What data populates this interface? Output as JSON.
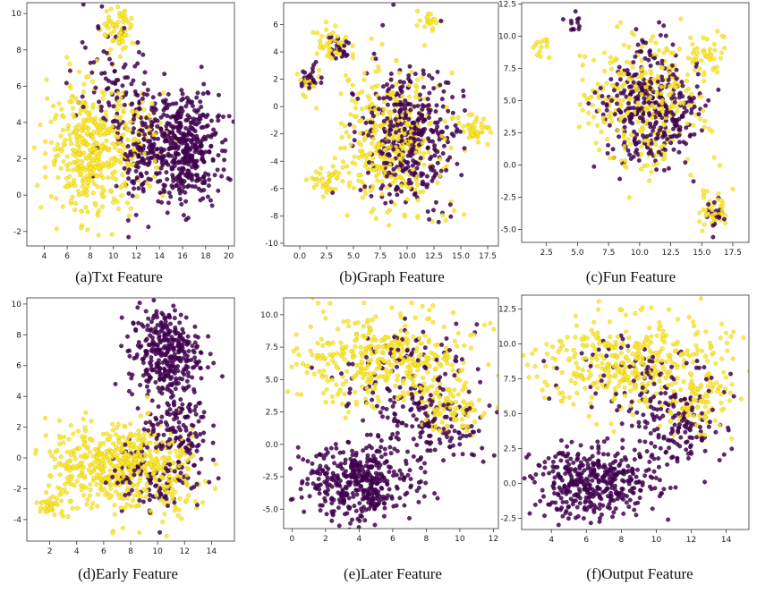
{
  "figure": {
    "colors": {
      "class_a": "#440154",
      "class_b": "#fde725",
      "frame": "#333333"
    }
  },
  "chart_data": [
    {
      "type": "scatter",
      "title": "(a)Txt Feature",
      "xlim": [
        2.5,
        20.5
      ],
      "ylim": [
        -2.8,
        10.6
      ],
      "xticks": [
        4,
        6,
        8,
        10,
        12,
        14,
        16,
        18,
        20
      ],
      "yticks": [
        -2,
        0,
        2,
        4,
        6,
        8,
        10
      ],
      "series": [
        {
          "color": "purple",
          "clusters": [
            {
              "cx": 16.2,
              "cy": 2.6,
              "rx": 2.9,
              "ry": 3.0,
              "n": 420
            },
            {
              "cx": 12.5,
              "cy": 2.5,
              "rx": 2.0,
              "ry": 3.2,
              "n": 140
            },
            {
              "cx": 10.0,
              "cy": 5.5,
              "rx": 3.5,
              "ry": 3.5,
              "n": 90
            }
          ]
        },
        {
          "color": "yellow",
          "clusters": [
            {
              "cx": 8.0,
              "cy": 2.5,
              "rx": 3.6,
              "ry": 3.6,
              "n": 380
            },
            {
              "cx": 10.5,
              "cy": 9.0,
              "rx": 1.4,
              "ry": 1.3,
              "n": 70
            },
            {
              "cx": 12.0,
              "cy": 3.0,
              "rx": 2.5,
              "ry": 2.5,
              "n": 80
            }
          ]
        }
      ]
    },
    {
      "type": "scatter",
      "title": "(b)Graph Feature",
      "xlim": [
        -1.5,
        18.5
      ],
      "ylim": [
        -10.2,
        7.6
      ],
      "xticks": [
        0.0,
        2.5,
        5.0,
        7.5,
        10.0,
        12.5,
        15.0,
        17.5
      ],
      "yticks": [
        -10,
        -8,
        -6,
        -4,
        -2,
        0,
        2,
        4,
        6
      ],
      "series": [
        {
          "color": "purple",
          "clusters": [
            {
              "cx": 10.0,
              "cy": -2.0,
              "rx": 4.5,
              "ry": 5.0,
              "n": 380
            },
            {
              "cx": 1.0,
              "cy": 2.0,
              "rx": 0.9,
              "ry": 0.9,
              "n": 25
            },
            {
              "cx": 3.5,
              "cy": 4.5,
              "rx": 1.0,
              "ry": 0.9,
              "n": 25
            }
          ]
        },
        {
          "color": "yellow",
          "clusters": [
            {
              "cx": 8.5,
              "cy": -2.5,
              "rx": 5.0,
              "ry": 5.2,
              "n": 360
            },
            {
              "cx": 3.0,
              "cy": 4.5,
              "rx": 1.5,
              "ry": 1.2,
              "n": 45
            },
            {
              "cx": 16.5,
              "cy": -1.8,
              "rx": 1.2,
              "ry": 1.0,
              "n": 45
            },
            {
              "cx": 12.0,
              "cy": 6.0,
              "rx": 1.0,
              "ry": 0.7,
              "n": 20
            },
            {
              "cx": 0.8,
              "cy": 1.8,
              "rx": 0.8,
              "ry": 0.8,
              "n": 20
            },
            {
              "cx": 2.5,
              "cy": -5.5,
              "rx": 1.5,
              "ry": 1.0,
              "n": 35
            }
          ]
        }
      ]
    },
    {
      "type": "scatter",
      "title": "(c)Fun Feature",
      "xlim": [
        0.5,
        18.8
      ],
      "ylim": [
        -6.0,
        12.6
      ],
      "xticks": [
        2.5,
        5.0,
        7.5,
        10.0,
        12.5,
        15.0,
        17.5
      ],
      "yticks": [
        -5.0,
        -2.5,
        0.0,
        2.5,
        5.0,
        7.5,
        10.0,
        12.5
      ],
      "series": [
        {
          "color": "purple",
          "clusters": [
            {
              "cx": 11.0,
              "cy": 4.5,
              "rx": 4.0,
              "ry": 4.5,
              "n": 340
            },
            {
              "cx": 16.0,
              "cy": -4.0,
              "rx": 0.9,
              "ry": 1.2,
              "n": 20
            },
            {
              "cx": 4.8,
              "cy": 11.0,
              "rx": 0.4,
              "ry": 0.8,
              "n": 12
            }
          ]
        },
        {
          "color": "yellow",
          "clusters": [
            {
              "cx": 10.5,
              "cy": 5.0,
              "rx": 5.0,
              "ry": 5.0,
              "n": 320
            },
            {
              "cx": 16.0,
              "cy": -3.5,
              "rx": 1.2,
              "ry": 1.6,
              "n": 40
            },
            {
              "cx": 2.0,
              "cy": 9.0,
              "rx": 0.6,
              "ry": 1.0,
              "n": 14
            },
            {
              "cx": 15.5,
              "cy": 8.5,
              "rx": 1.5,
              "ry": 1.5,
              "n": 30
            }
          ]
        }
      ]
    },
    {
      "type": "scatter",
      "title": "(d)Early Feature",
      "xlim": [
        0.3,
        15.7
      ],
      "ylim": [
        -5.4,
        10.4
      ],
      "xticks": [
        2,
        4,
        6,
        8,
        10,
        12,
        14
      ],
      "yticks": [
        -4,
        -2,
        0,
        2,
        4,
        6,
        8,
        10
      ],
      "series": [
        {
          "color": "purple",
          "clusters": [
            {
              "cx": 10.5,
              "cy": 6.8,
              "rx": 2.6,
              "ry": 3.0,
              "n": 340
            },
            {
              "cx": 11.5,
              "cy": 2.0,
              "rx": 2.2,
              "ry": 2.5,
              "n": 120
            },
            {
              "cx": 10.0,
              "cy": -1.0,
              "rx": 3.5,
              "ry": 2.5,
              "n": 120
            }
          ]
        },
        {
          "color": "yellow",
          "clusters": [
            {
              "cx": 5.5,
              "cy": -0.5,
              "rx": 3.8,
              "ry": 2.8,
              "n": 300
            },
            {
              "cx": 10.0,
              "cy": -1.0,
              "rx": 3.8,
              "ry": 3.0,
              "n": 220
            },
            {
              "cx": 2.0,
              "cy": -3.0,
              "rx": 1.0,
              "ry": 0.6,
              "n": 30
            },
            {
              "cx": 8.0,
              "cy": 0.0,
              "rx": 1.5,
              "ry": 1.5,
              "n": 60
            }
          ]
        }
      ]
    },
    {
      "type": "scatter",
      "title": "(e)Later Feature",
      "xlim": [
        -0.5,
        12.3
      ],
      "ylim": [
        -6.5,
        11.3
      ],
      "xticks": [
        0,
        2,
        4,
        6,
        8,
        10,
        12
      ],
      "yticks": [
        -5.0,
        -2.5,
        0.0,
        2.5,
        5.0,
        7.5,
        10.0
      ],
      "series": [
        {
          "color": "purple",
          "clusters": [
            {
              "cx": 4.0,
              "cy": -3.0,
              "rx": 3.2,
              "ry": 2.8,
              "n": 400
            },
            {
              "cx": 8.0,
              "cy": 1.5,
              "rx": 3.5,
              "ry": 3.0,
              "n": 160
            },
            {
              "cx": 7.0,
              "cy": 6.0,
              "rx": 4.0,
              "ry": 3.0,
              "n": 90
            }
          ]
        },
        {
          "color": "yellow",
          "clusters": [
            {
              "cx": 5.5,
              "cy": 6.5,
              "rx": 5.2,
              "ry": 3.5,
              "n": 400
            },
            {
              "cx": 9.5,
              "cy": 2.5,
              "rx": 2.2,
              "ry": 2.5,
              "n": 90
            }
          ]
        }
      ]
    },
    {
      "type": "scatter",
      "title": "(f)Output Feature",
      "xlim": [
        2.3,
        15.3
      ],
      "ylim": [
        -3.3,
        13.5
      ],
      "xticks": [
        4,
        6,
        8,
        10,
        12,
        14
      ],
      "yticks": [
        -2.5,
        0.0,
        2.5,
        5.0,
        7.5,
        10.0,
        12.5
      ],
      "series": [
        {
          "color": "purple",
          "clusters": [
            {
              "cx": 6.5,
              "cy": 0.0,
              "rx": 3.5,
              "ry": 2.5,
              "n": 400
            },
            {
              "cx": 11.0,
              "cy": 4.0,
              "rx": 3.0,
              "ry": 3.0,
              "n": 150
            },
            {
              "cx": 9.0,
              "cy": 8.0,
              "rx": 4.0,
              "ry": 3.0,
              "n": 80
            }
          ]
        },
        {
          "color": "yellow",
          "clusters": [
            {
              "cx": 8.5,
              "cy": 8.5,
              "rx": 5.5,
              "ry": 3.5,
              "n": 400
            },
            {
              "cx": 12.5,
              "cy": 5.5,
              "rx": 2.0,
              "ry": 2.5,
              "n": 80
            }
          ]
        }
      ]
    }
  ]
}
